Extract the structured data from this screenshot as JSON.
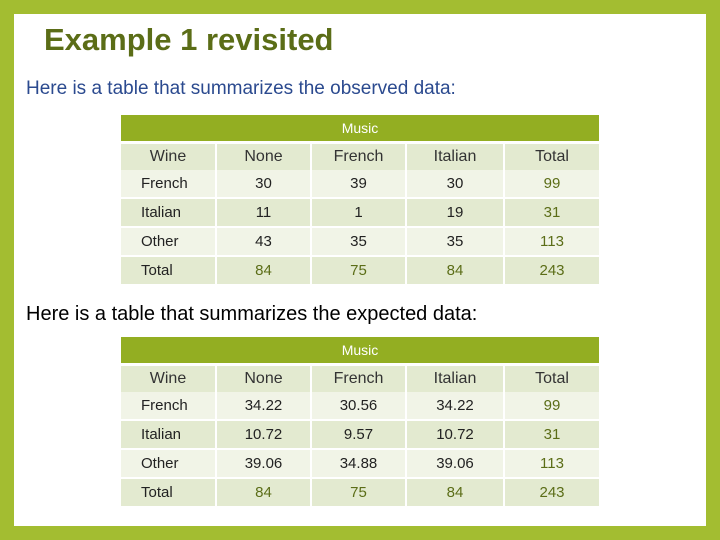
{
  "title": "Example 1 revisited",
  "observed_intro": "Here is a table that summarizes the observed data:",
  "expected_intro": "Here is a table that summarizes the expected data:",
  "colors": {
    "accent": "#a3bd31",
    "header_band": "#93ae22",
    "title": "#5b6d17",
    "text_blue": "#2b4a8f"
  },
  "observed": {
    "group_label": "Music",
    "headers": [
      "Wine",
      "None",
      "French",
      "Italian",
      "Total"
    ],
    "rows": [
      [
        "French",
        "30",
        "39",
        "30",
        "99"
      ],
      [
        "Italian",
        "11",
        "1",
        "19",
        "31"
      ],
      [
        "Other",
        "43",
        "35",
        "35",
        "113"
      ],
      [
        "Total",
        "84",
        "75",
        "84",
        "243"
      ]
    ]
  },
  "expected": {
    "group_label": "Music",
    "headers": [
      "Wine",
      "None",
      "French",
      "Italian",
      "Total"
    ],
    "rows": [
      [
        "French",
        "34.22",
        "30.56",
        "34.22",
        "99"
      ],
      [
        "Italian",
        "10.72",
        "9.57",
        "10.72",
        "31"
      ],
      [
        "Other",
        "39.06",
        "34.88",
        "39.06",
        "113"
      ],
      [
        "Total",
        "84",
        "75",
        "84",
        "243"
      ]
    ]
  }
}
